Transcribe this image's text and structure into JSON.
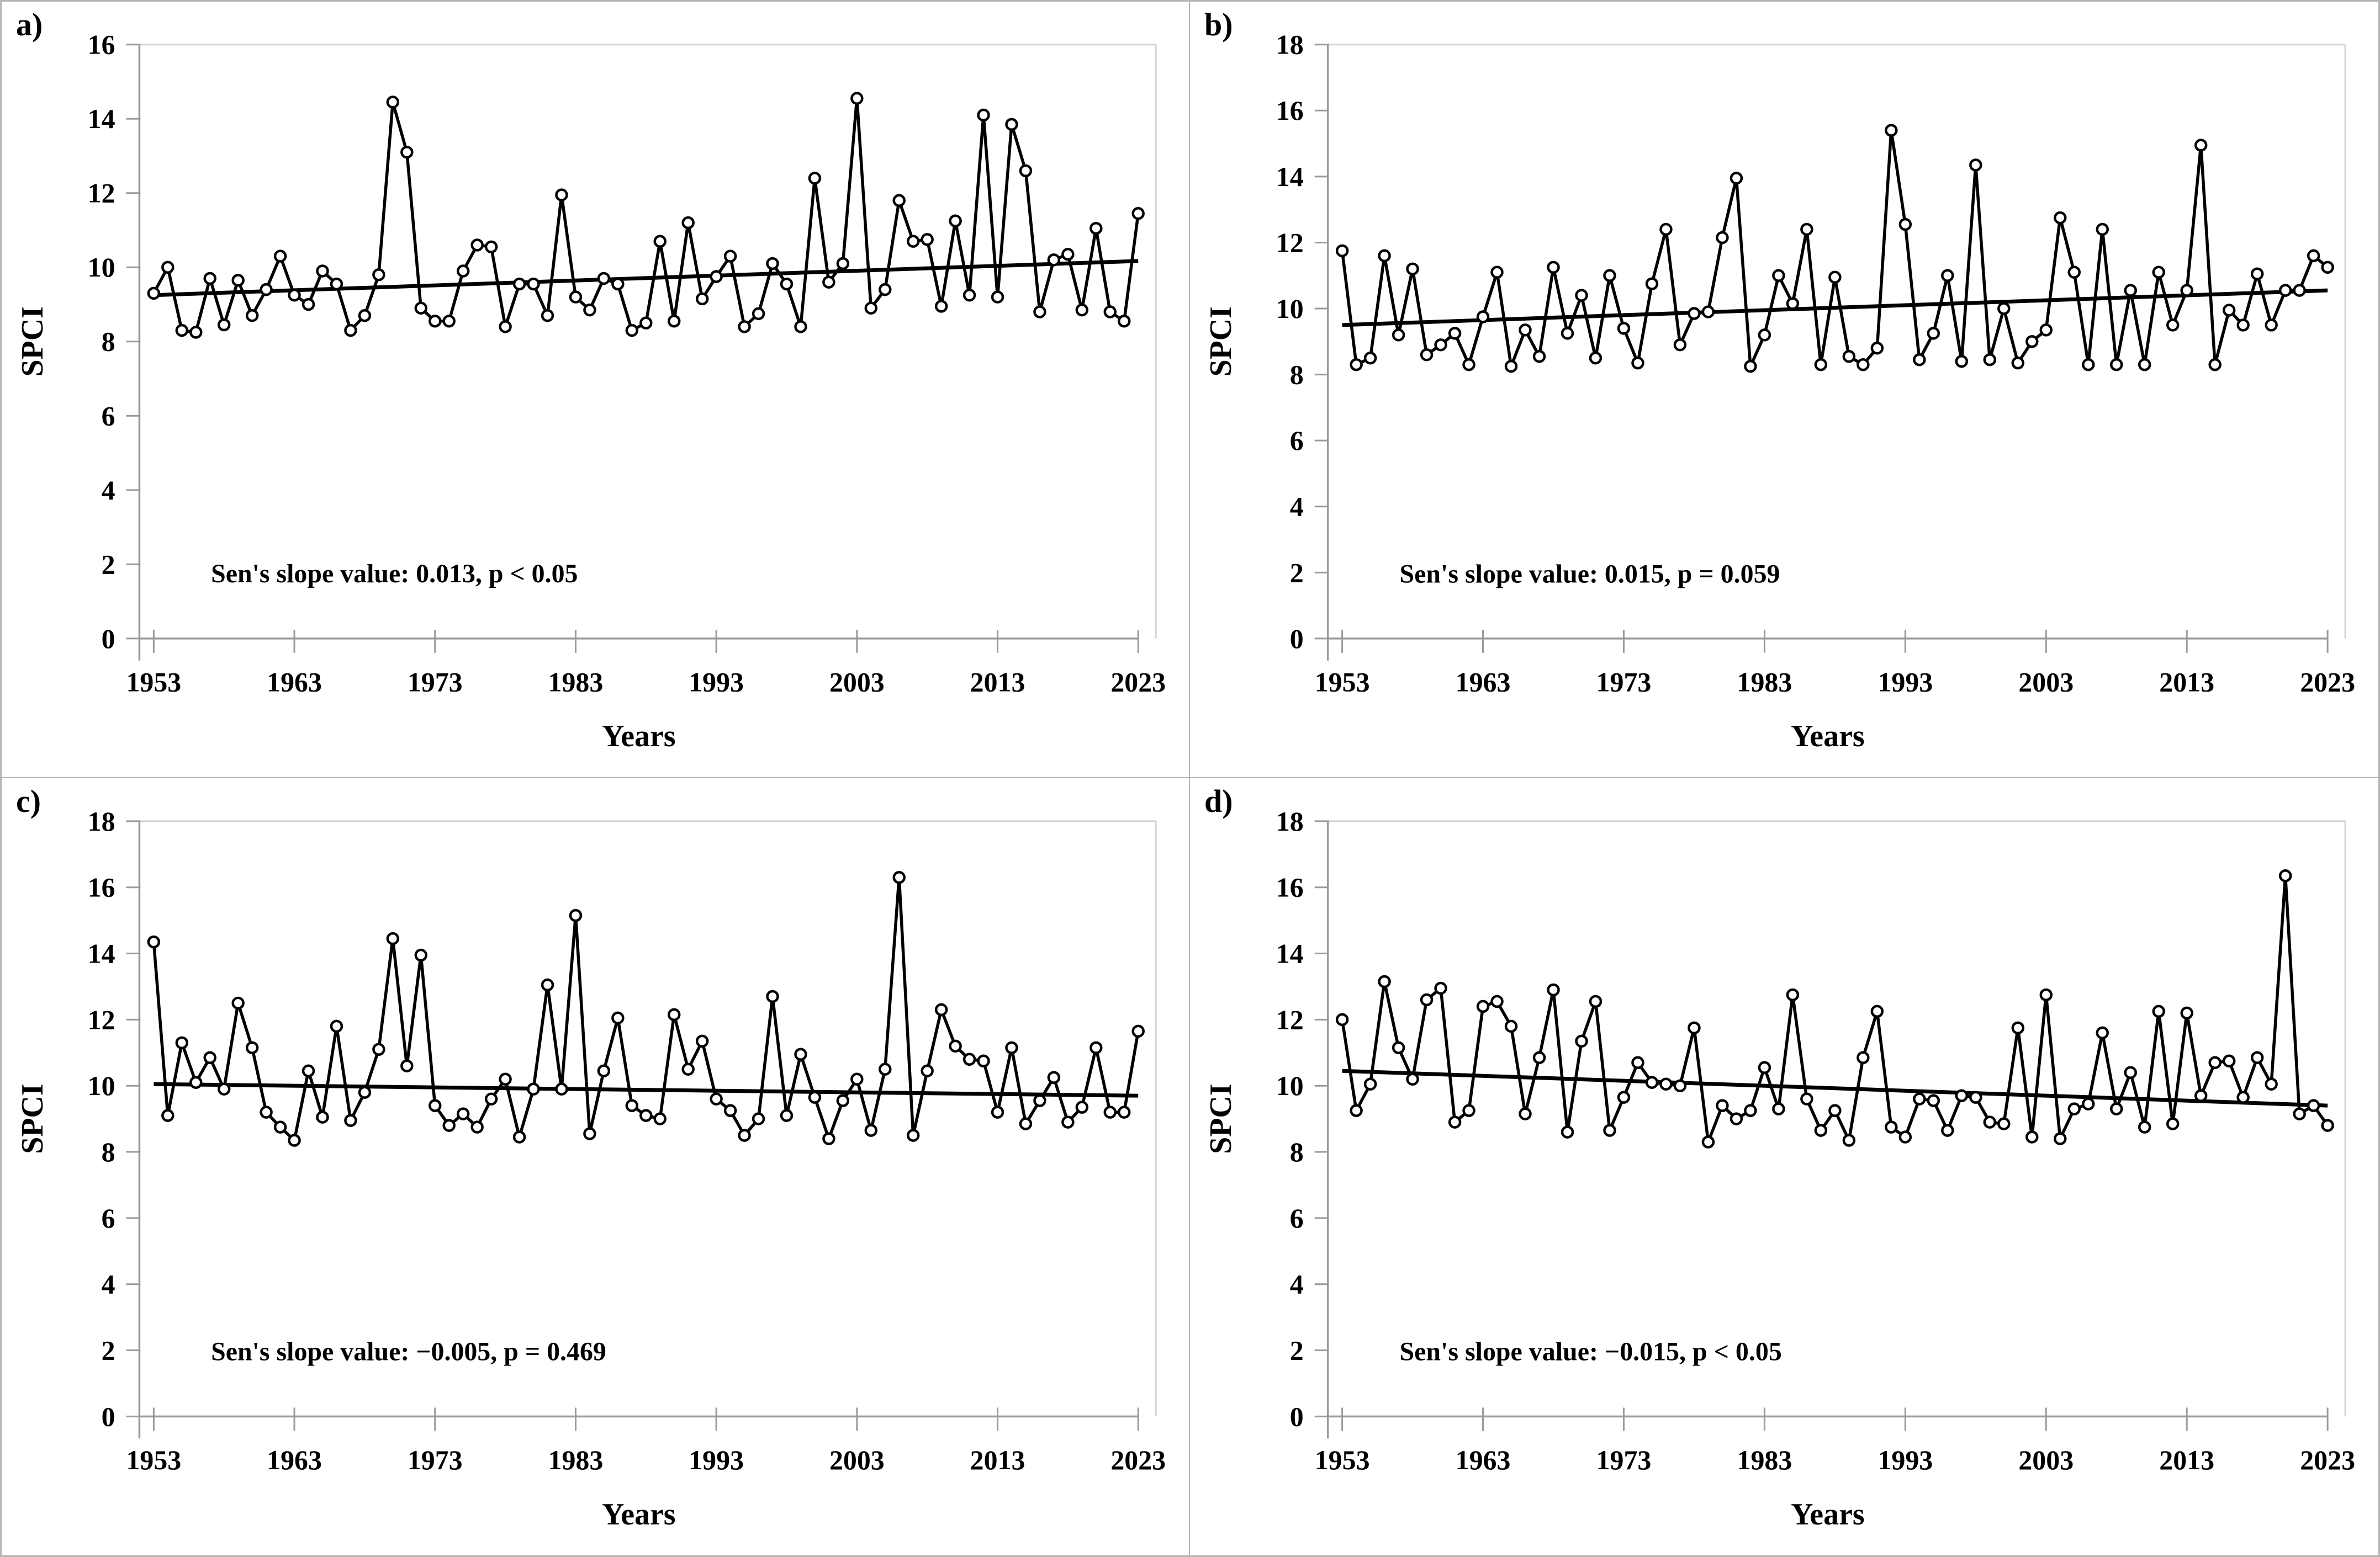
{
  "style": {
    "axis_color": "#9a9a9a",
    "plot_border_color": "#d4d4d4",
    "series_color": "#000000",
    "marker_fill": "#ffffff",
    "background": "#ffffff"
  },
  "shared": {
    "xlabel": "Years",
    "ylabel": "SPCI",
    "xtick_labels": [
      "1953",
      "1963",
      "1973",
      "1983",
      "1993",
      "2003",
      "2013",
      "2023"
    ],
    "years_start": 1953,
    "years_end": 2023
  },
  "chart_data": [
    {
      "panel_label": "a)",
      "type": "line",
      "xlabel": "Years",
      "ylabel": "SPCI",
      "ylim": [
        0,
        16
      ],
      "ytick_step": 2,
      "ytick_labels": [
        "0",
        "2",
        "4",
        "6",
        "8",
        "10",
        "12",
        "14",
        "16"
      ],
      "xtick_labels": [
        "1953",
        "1963",
        "1973",
        "1983",
        "1993",
        "2003",
        "2013",
        "2023"
      ],
      "x_start": 1953,
      "x_end": 2023,
      "annotation": "Sen's slope value: 0.013, p < 0.05",
      "trend": {
        "start_value": 9.25,
        "end_value": 10.17,
        "sens_slope": 0.013,
        "p_text": "p < 0.05"
      },
      "values": [
        9.3,
        10.0,
        8.3,
        8.25,
        9.7,
        8.45,
        9.65,
        8.7,
        9.4,
        10.3,
        9.25,
        9.0,
        9.9,
        9.55,
        8.3,
        8.7,
        9.8,
        14.45,
        13.1,
        8.9,
        8.55,
        8.55,
        9.9,
        10.6,
        10.55,
        8.4,
        9.55,
        9.55,
        8.7,
        11.95,
        9.2,
        8.85,
        9.7,
        9.55,
        8.3,
        8.5,
        10.7,
        8.55,
        11.2,
        9.15,
        9.75,
        10.3,
        8.4,
        8.75,
        10.1,
        9.55,
        8.4,
        12.4,
        9.6,
        10.1,
        14.55,
        8.9,
        9.4,
        11.8,
        10.7,
        10.75,
        8.95,
        11.25,
        9.25,
        14.1,
        9.2,
        13.85,
        12.6,
        8.8,
        10.2,
        10.35,
        8.85,
        11.05,
        8.8,
        8.55,
        11.45
      ]
    },
    {
      "panel_label": "b)",
      "type": "line",
      "xlabel": "Years",
      "ylabel": "SPCI",
      "ylim": [
        0,
        18
      ],
      "ytick_step": 2,
      "ytick_labels": [
        "0",
        "2",
        "4",
        "6",
        "8",
        "10",
        "12",
        "14",
        "16",
        "18"
      ],
      "xtick_labels": [
        "1953",
        "1963",
        "1973",
        "1983",
        "1993",
        "2003",
        "2013",
        "2023"
      ],
      "x_start": 1953,
      "x_end": 2023,
      "annotation": "Sen's slope value: 0.015, p = 0.059",
      "trend": {
        "start_value": 9.5,
        "end_value": 10.55,
        "sens_slope": 0.015,
        "p_text": "p = 0.059"
      },
      "values": [
        11.75,
        8.3,
        8.5,
        11.6,
        9.2,
        11.2,
        8.6,
        8.9,
        9.25,
        8.3,
        9.75,
        11.1,
        8.25,
        9.35,
        8.55,
        11.25,
        9.25,
        10.4,
        8.5,
        11.0,
        9.4,
        8.35,
        10.75,
        12.4,
        8.9,
        9.85,
        9.9,
        12.15,
        13.95,
        8.25,
        9.2,
        11.0,
        10.15,
        12.4,
        8.3,
        10.95,
        8.55,
        8.3,
        8.8,
        15.4,
        12.55,
        8.45,
        9.25,
        11.0,
        8.4,
        14.35,
        8.45,
        10.0,
        8.35,
        9.0,
        9.35,
        12.75,
        11.1,
        8.3,
        12.4,
        8.3,
        10.55,
        8.3,
        11.1,
        9.5,
        10.55,
        14.95,
        8.3,
        9.95,
        9.5,
        11.05,
        9.5,
        10.55,
        10.55,
        11.6,
        11.25
      ]
    },
    {
      "panel_label": "c)",
      "type": "line",
      "xlabel": "Years",
      "ylabel": "SPCI",
      "ylim": [
        0,
        18
      ],
      "ytick_step": 2,
      "ytick_labels": [
        "0",
        "2",
        "4",
        "6",
        "8",
        "10",
        "12",
        "14",
        "16",
        "18"
      ],
      "xtick_labels": [
        "1953",
        "1963",
        "1973",
        "1983",
        "1993",
        "2003",
        "2013",
        "2023"
      ],
      "x_start": 1953,
      "x_end": 2023,
      "annotation": "Sen's slope value: −0.005, p = 0.469",
      "trend": {
        "start_value": 10.05,
        "end_value": 9.7,
        "sens_slope": -0.005,
        "p_text": "p = 0.469"
      },
      "values": [
        14.35,
        9.1,
        11.3,
        10.1,
        10.85,
        9.9,
        12.5,
        11.15,
        9.2,
        8.75,
        8.35,
        10.45,
        9.05,
        11.8,
        8.95,
        9.8,
        11.1,
        14.45,
        10.6,
        13.95,
        9.4,
        8.8,
        9.15,
        8.75,
        9.6,
        10.2,
        8.45,
        9.9,
        13.05,
        9.9,
        15.15,
        8.55,
        10.45,
        12.05,
        9.4,
        9.1,
        9.0,
        12.15,
        10.5,
        11.35,
        9.6,
        9.25,
        8.5,
        9.0,
        12.7,
        9.1,
        10.95,
        9.65,
        8.4,
        9.55,
        10.2,
        8.65,
        10.5,
        16.3,
        8.5,
        10.45,
        12.3,
        11.2,
        10.8,
        10.75,
        9.2,
        11.15,
        8.85,
        9.55,
        10.25,
        8.9,
        9.35,
        11.15,
        9.2,
        9.2,
        11.65
      ]
    },
    {
      "panel_label": "d)",
      "type": "line",
      "xlabel": "Years",
      "ylabel": "SPCI",
      "ylim": [
        0,
        18
      ],
      "ytick_step": 2,
      "ytick_labels": [
        "0",
        "2",
        "4",
        "6",
        "8",
        "10",
        "12",
        "14",
        "16",
        "18"
      ],
      "xtick_labels": [
        "1953",
        "1963",
        "1973",
        "1983",
        "1993",
        "2003",
        "2013",
        "2023"
      ],
      "x_start": 1953,
      "x_end": 2023,
      "annotation": "Sen's slope value: −0.015, p < 0.05",
      "trend": {
        "start_value": 10.45,
        "end_value": 9.4,
        "sens_slope": -0.015,
        "p_text": "p < 0.05"
      },
      "values": [
        12.0,
        9.25,
        10.05,
        13.15,
        11.15,
        10.2,
        12.6,
        12.95,
        8.9,
        9.25,
        12.4,
        12.55,
        11.8,
        9.15,
        10.85,
        12.9,
        8.6,
        11.35,
        12.55,
        8.65,
        9.65,
        10.7,
        10.1,
        10.05,
        10.0,
        11.75,
        8.3,
        9.4,
        9.0,
        9.25,
        10.55,
        9.3,
        12.75,
        9.6,
        8.65,
        9.25,
        8.35,
        10.85,
        12.25,
        8.75,
        8.45,
        9.6,
        9.55,
        8.65,
        9.7,
        9.65,
        8.9,
        8.85,
        11.75,
        8.45,
        12.75,
        8.4,
        9.3,
        9.45,
        11.6,
        9.3,
        10.4,
        8.75,
        12.25,
        8.85,
        12.2,
        9.7,
        10.7,
        10.75,
        9.65,
        10.85,
        10.05,
        16.35,
        9.15,
        9.4,
        8.8
      ]
    }
  ]
}
